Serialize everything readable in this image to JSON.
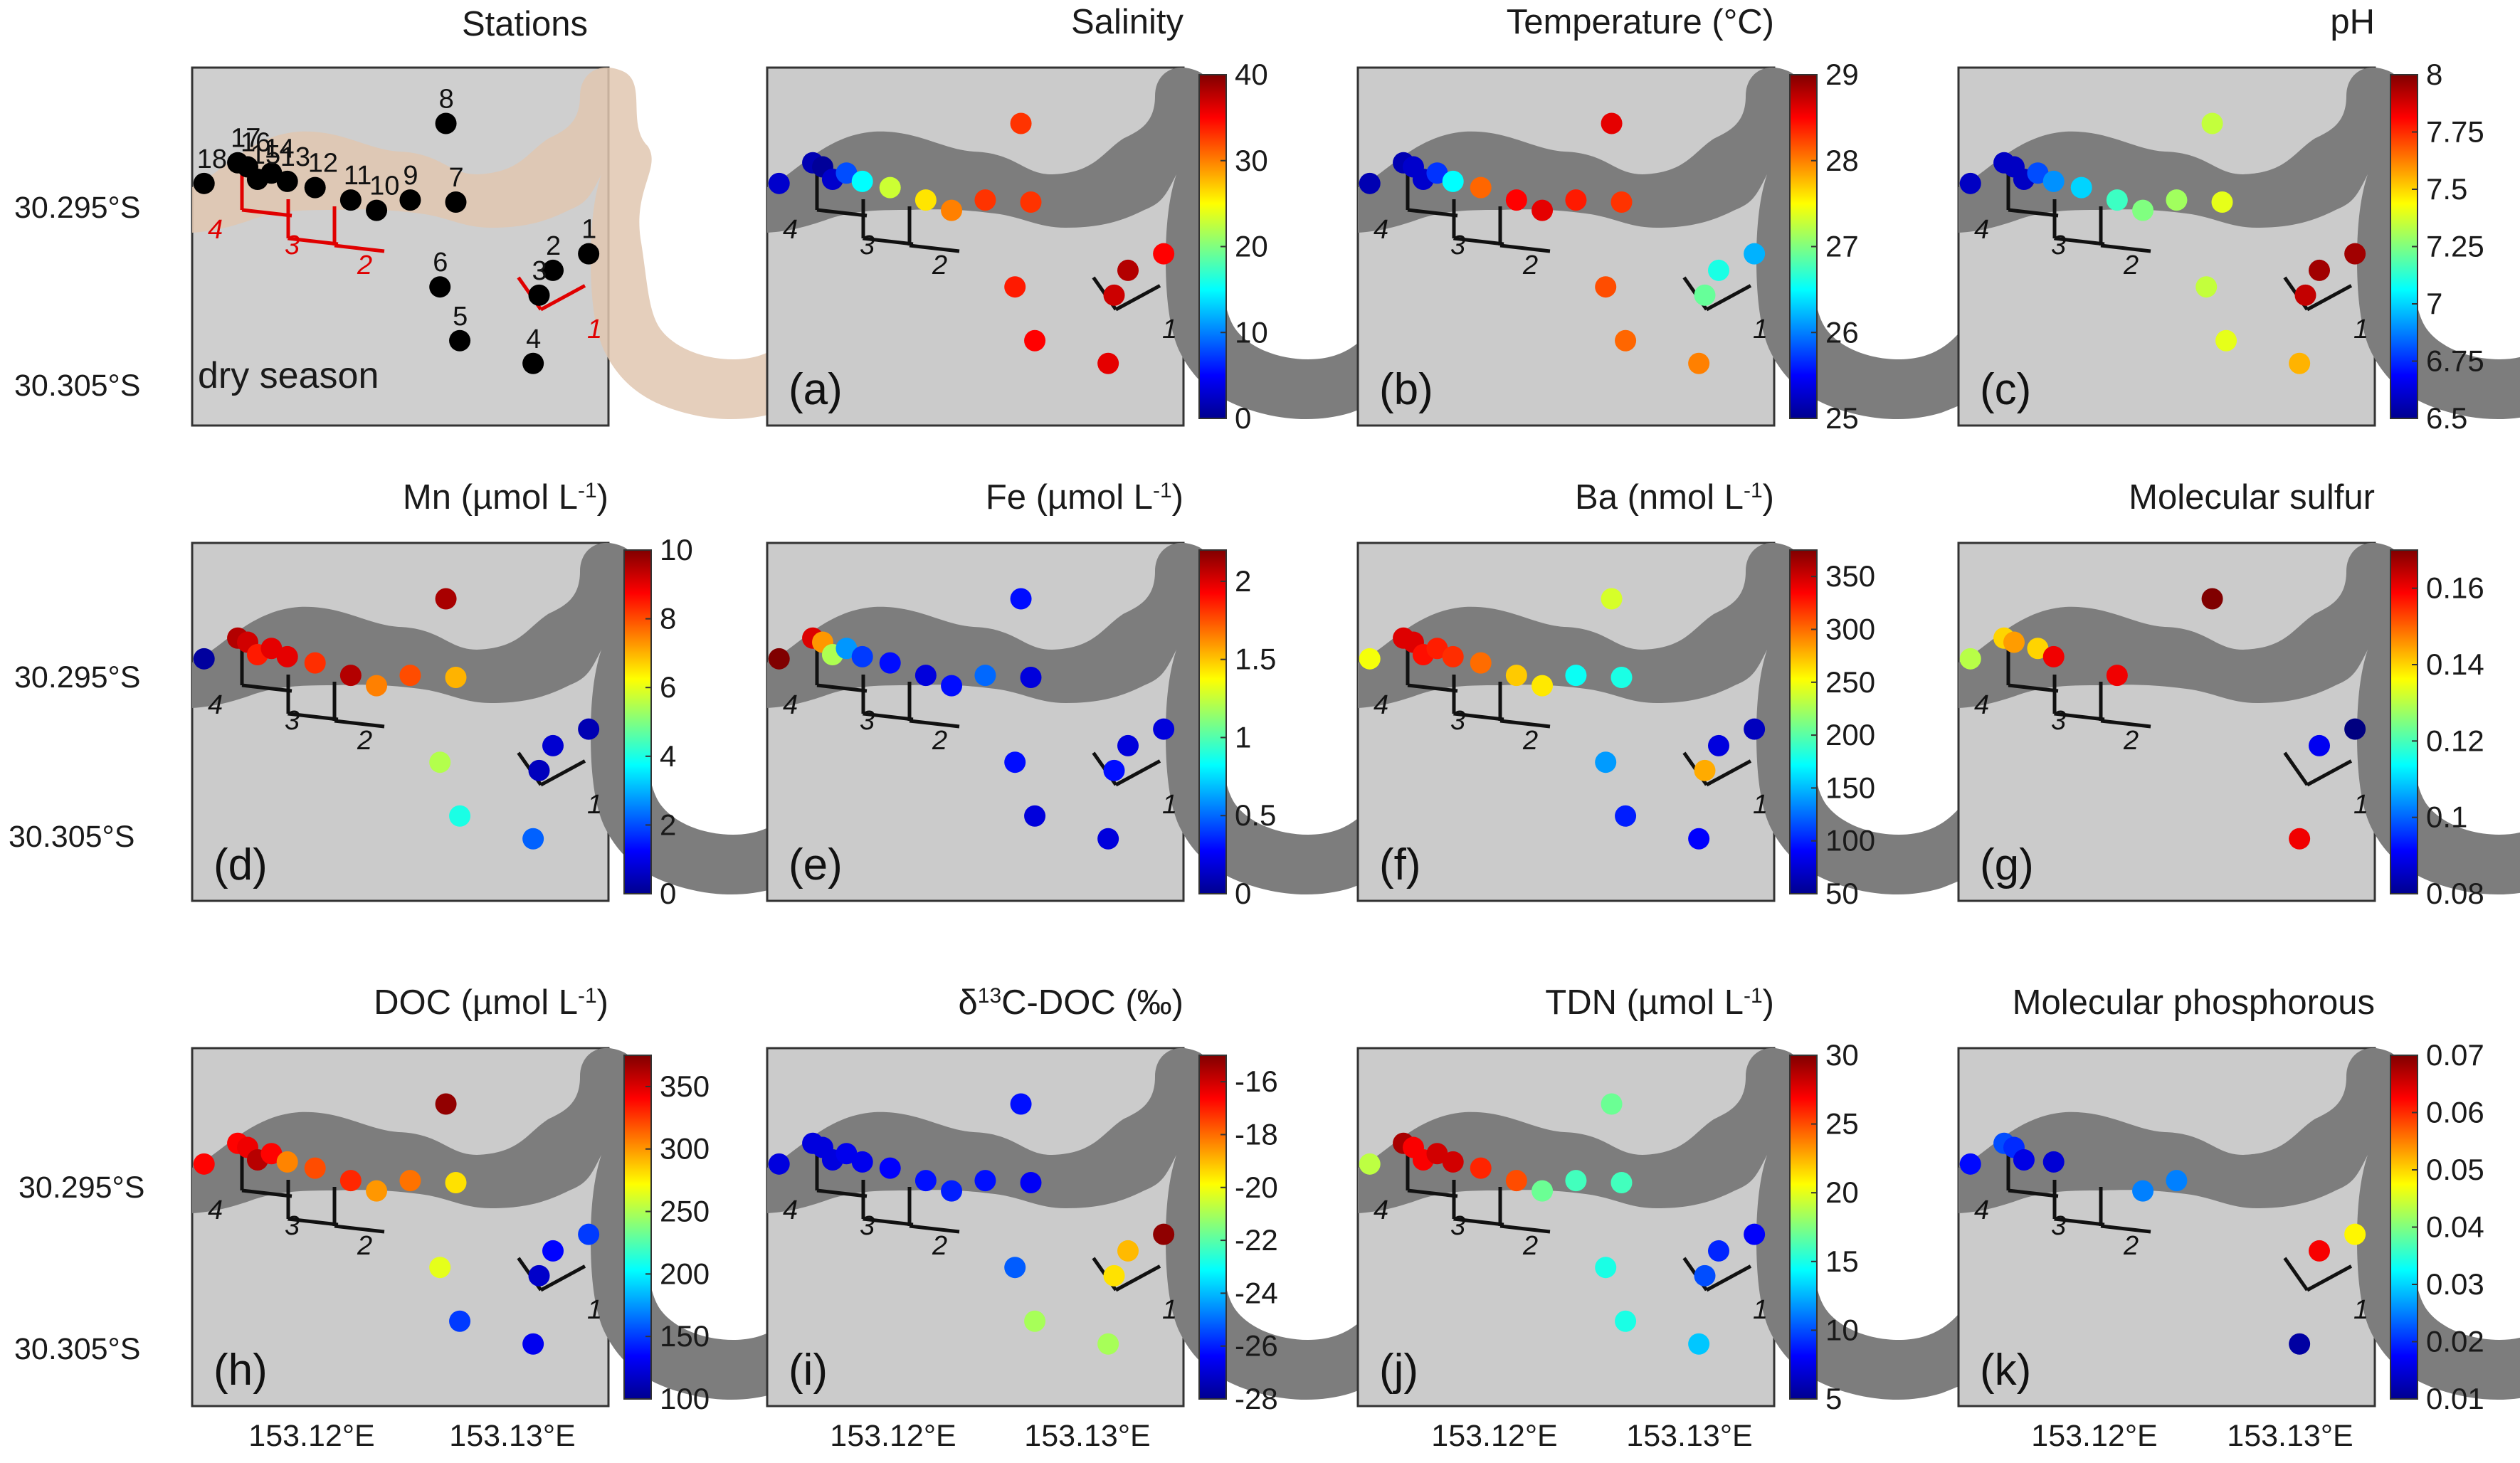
{
  "figure": {
    "station_panel": {
      "title": "Stations",
      "season_label": "dry season",
      "stations": [
        {
          "id": "1",
          "lon": 153.1335,
          "lat": -30.2983
        },
        {
          "id": "2",
          "lon": 153.1317,
          "lat": -30.2991
        },
        {
          "id": "3",
          "lon": 153.131,
          "lat": -30.3003
        },
        {
          "id": "4",
          "lon": 153.1307,
          "lat": -30.3036
        },
        {
          "id": "5",
          "lon": 153.127,
          "lat": -30.3025
        },
        {
          "id": "6",
          "lon": 153.126,
          "lat": -30.2999
        },
        {
          "id": "7",
          "lon": 153.1268,
          "lat": -30.2958
        },
        {
          "id": "8",
          "lon": 153.1263,
          "lat": -30.292
        },
        {
          "id": "9",
          "lon": 153.1245,
          "lat": -30.2957
        },
        {
          "id": "10",
          "lon": 153.1228,
          "lat": -30.2962
        },
        {
          "id": "11",
          "lon": 153.1215,
          "lat": -30.2957
        },
        {
          "id": "12",
          "lon": 153.1197,
          "lat": -30.2951
        },
        {
          "id": "13",
          "lon": 153.1183,
          "lat": -30.2948
        },
        {
          "id": "14",
          "lon": 153.1175,
          "lat": -30.2944
        },
        {
          "id": "15",
          "lon": 153.1168,
          "lat": -30.2947
        },
        {
          "id": "16",
          "lon": 153.1163,
          "lat": -30.2941
        },
        {
          "id": "17",
          "lon": 153.1158,
          "lat": -30.2939
        },
        {
          "id": "18",
          "lon": 153.1141,
          "lat": -30.2949
        }
      ],
      "transects": [
        "1",
        "2",
        "3",
        "4"
      ]
    },
    "y_tick_labels": [
      "30.295°S",
      "30.305°S"
    ],
    "x_tick_labels": [
      "153.12°E",
      "153.13°E"
    ]
  },
  "chart_data": [
    {
      "panel": "a",
      "title": "Salinity",
      "type": "scatter",
      "colorbar_ticks": [
        "40",
        "30",
        "20",
        "10",
        "0"
      ],
      "clim": [
        0,
        40
      ],
      "stations": [
        "18",
        "17",
        "16",
        "15",
        "14",
        "13",
        "12",
        "11",
        "10",
        "9",
        "8",
        "7",
        "6",
        "5",
        "4",
        "3",
        "2",
        "1"
      ],
      "values": [
        3,
        2,
        1,
        3,
        8,
        15,
        23,
        26,
        30,
        33,
        33,
        33,
        34,
        35,
        36,
        37,
        38,
        35
      ]
    },
    {
      "panel": "b",
      "title": "Temperature (°C)",
      "type": "scatter",
      "colorbar_ticks": [
        "29",
        "28",
        "27",
        "26",
        "25"
      ],
      "clim": [
        25,
        29
      ],
      "stations": [
        "18",
        "17",
        "16",
        "15",
        "14",
        "13",
        "12",
        "11",
        "10",
        "9",
        "8",
        "7",
        "6",
        "5",
        "4",
        "3",
        "2",
        "1"
      ],
      "values": [
        25.2,
        25.2,
        25.3,
        25.3,
        25.7,
        26.5,
        28.1,
        28.5,
        28.6,
        28.4,
        28.6,
        28.3,
        28.2,
        28.1,
        28.0,
        26.9,
        26.6,
        26.2
      ]
    },
    {
      "panel": "c",
      "title": "pH",
      "type": "scatter",
      "colorbar_ticks": [
        "8",
        "7.75",
        "7.5",
        "7.25",
        "7",
        "6.75",
        "6.5"
      ],
      "clim": [
        6.5,
        8
      ],
      "stations": [
        "18",
        "17",
        "16",
        "15",
        "14",
        "13",
        "12",
        "11",
        "10",
        "9",
        "8",
        "7",
        "6",
        "5",
        "4",
        "3",
        "2",
        "1"
      ],
      "values": [
        6.6,
        6.6,
        6.6,
        6.6,
        6.8,
        6.9,
        7.0,
        7.15,
        7.25,
        7.3,
        7.35,
        7.4,
        7.35,
        7.4,
        7.55,
        7.9,
        7.95,
        7.95
      ]
    },
    {
      "panel": "d",
      "title": "Mn (µmol L",
      "title_sup": "-1",
      "title_end": ")",
      "type": "scatter",
      "colorbar_ticks": [
        "10",
        "8",
        "6",
        "4",
        "2",
        "0"
      ],
      "clim": [
        0,
        10
      ],
      "stations": [
        "18",
        "17",
        "16",
        "15",
        "14",
        "13",
        "12",
        "11",
        "10",
        "9",
        "8",
        "7",
        "6",
        "5",
        "4",
        "3",
        "2",
        "1"
      ],
      "values": [
        0.3,
        9.5,
        9.2,
        8.5,
        9.0,
        9.0,
        8.3,
        9.5,
        7.5,
        8.0,
        9.6,
        7.0,
        5.5,
        4.0,
        2.2,
        0.6,
        0.8,
        0.5
      ]
    },
    {
      "panel": "e",
      "title": "Fe (µmol L",
      "title_sup": "-1",
      "title_end": ")",
      "type": "scatter",
      "colorbar_ticks": [
        "2",
        "1.5",
        "1",
        "0.5",
        "0"
      ],
      "clim": [
        0,
        2.2
      ],
      "stations": [
        "18",
        "17",
        "16",
        "15",
        "14",
        "13",
        "12",
        "11",
        "10",
        "9",
        "8",
        "7",
        "6",
        "5",
        "4",
        "3",
        "2",
        "1"
      ],
      "values": [
        2.2,
        2.0,
        1.6,
        1.2,
        0.6,
        0.4,
        0.3,
        0.2,
        0.3,
        0.5,
        0.3,
        0.2,
        0.3,
        0.2,
        0.2,
        0.3,
        0.2,
        0.2
      ]
    },
    {
      "panel": "f",
      "title": "Ba (nmol L",
      "title_sup": "-1",
      "title_end": ")",
      "type": "scatter",
      "colorbar_ticks": [
        "350",
        "300",
        "250",
        "200",
        "150",
        "100",
        "50"
      ],
      "clim": [
        50,
        375
      ],
      "stations": [
        "18",
        "17",
        "16",
        "15",
        "14",
        "13",
        "12",
        "11",
        "10",
        "9",
        "8",
        "7",
        "6",
        "5",
        "4",
        "3",
        "2",
        "1"
      ],
      "values": [
        250,
        345,
        345,
        330,
        325,
        320,
        300,
        270,
        260,
        175,
        240,
        180,
        140,
        100,
        90,
        280,
        80,
        70
      ]
    },
    {
      "panel": "g",
      "title": "Molecular sulfur",
      "type": "scatter",
      "colorbar_ticks": [
        "0.16",
        "0.14",
        "0.12",
        "0.1",
        "0.08"
      ],
      "clim": [
        0.08,
        0.17
      ],
      "stations": [
        "18",
        "17",
        "16",
        "14",
        "13",
        "11",
        "8",
        "2",
        "1",
        "4"
      ],
      "values": [
        0.13,
        0.14,
        0.145,
        0.14,
        0.16,
        0.16,
        0.17,
        0.09,
        0.08,
        0.16
      ]
    },
    {
      "panel": "h",
      "title": "DOC (µmol L",
      "title_sup": "-1",
      "title_end": ")",
      "type": "scatter",
      "colorbar_ticks": [
        "350",
        "300",
        "250",
        "200",
        "150",
        "100"
      ],
      "clim": [
        100,
        375
      ],
      "stations": [
        "18",
        "17",
        "16",
        "15",
        "14",
        "13",
        "12",
        "11",
        "10",
        "9",
        "8",
        "7",
        "6",
        "5",
        "4",
        "3",
        "2",
        "1"
      ],
      "values": [
        340,
        340,
        345,
        360,
        340,
        305,
        320,
        330,
        300,
        310,
        370,
        280,
        265,
        150,
        130,
        120,
        135,
        150
      ]
    },
    {
      "panel": "i",
      "title": "δ",
      "title_sup": "13",
      "title_end": "C-DOC (‰)",
      "type": "scatter",
      "colorbar_ticks": [
        "-16",
        "-18",
        "-20",
        "-22",
        "-24",
        "-26",
        "-28"
      ],
      "clim": [
        -28,
        -15
      ],
      "stations": [
        "18",
        "17",
        "16",
        "15",
        "14",
        "13",
        "12",
        "11",
        "10",
        "9",
        "8",
        "7",
        "6",
        "5",
        "4",
        "3",
        "2",
        "1"
      ],
      "values": [
        -26.8,
        -26.8,
        -26.8,
        -26.8,
        -26.6,
        -26.6,
        -26.4,
        -26.2,
        -26.0,
        -26.2,
        -26.2,
        -26.5,
        -25.2,
        -21.0,
        -21.0,
        -19.5,
        -19.0,
        -15.2
      ]
    },
    {
      "panel": "j",
      "title": "TDN (µmol L",
      "title_sup": "-1",
      "title_end": ")",
      "type": "scatter",
      "colorbar_ticks": [
        "30",
        "25",
        "20",
        "15",
        "10",
        "5"
      ],
      "clim": [
        5,
        30
      ],
      "stations": [
        "18",
        "17",
        "16",
        "15",
        "14",
        "13",
        "12",
        "11",
        "10",
        "9",
        "8",
        "7",
        "6",
        "5",
        "4",
        "3",
        "2",
        "1"
      ],
      "values": [
        19,
        29,
        27,
        27,
        28,
        28,
        26,
        25,
        17,
        16,
        17,
        16,
        15,
        15,
        13,
        10,
        9,
        8
      ]
    },
    {
      "panel": "k",
      "title": "Molecular phosphorous",
      "type": "scatter",
      "colorbar_ticks": [
        "0.07",
        "0.06",
        "0.05",
        "0.04",
        "0.03",
        "0.02",
        "0.01"
      ],
      "clim": [
        0.01,
        0.07
      ],
      "stations": [
        "18",
        "17",
        "16",
        "15",
        "13",
        "10",
        "9",
        "4",
        "2",
        "1"
      ],
      "values": [
        0.018,
        0.022,
        0.02,
        0.016,
        0.015,
        0.025,
        0.025,
        0.012,
        0.063,
        0.048
      ]
    }
  ]
}
